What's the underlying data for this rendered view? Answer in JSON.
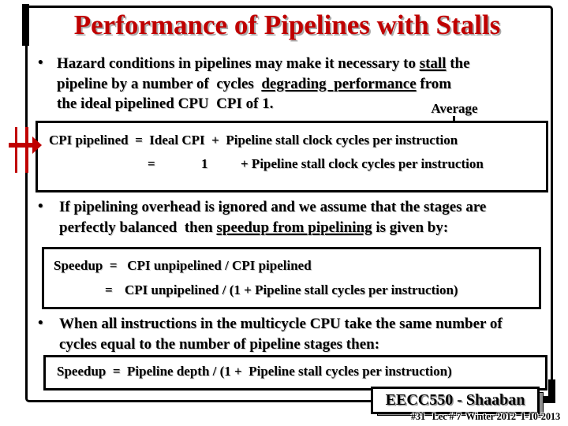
{
  "slide": {
    "title": "Performance of Pipelines with Stalls",
    "colors": {
      "accent_red": "#c00000",
      "text": "#000000",
      "shadow_gray": "#8f8f8f"
    },
    "bullets": [
      {
        "marker": "•",
        "segments": [
          {
            "t": "Hazard conditions in pipelines may make it necessary to "
          },
          {
            "t": "stall",
            "u": true
          },
          {
            "t": " the",
            "br": true
          },
          {
            "t": "pipeline by a number of  cycles  "
          },
          {
            "t": "degrading  performance",
            "u": true
          },
          {
            "t": " from",
            "br": true
          },
          {
            "t": "the ideal pipelined CPU  CPI of 1."
          }
        ]
      },
      {
        "marker": "•",
        "segments": [
          {
            "t": "If pipelining overhead is ignored and we assume that the stages are",
            "br": true
          },
          {
            "t": "perfectly balanced  then "
          },
          {
            "t": "speedup from pipelining",
            "u": true
          },
          {
            "t": " is given by:"
          }
        ]
      },
      {
        "marker": "•",
        "segments": [
          {
            "t": "When all instructions in the multicycle CPU take the same number of",
            "br": true
          },
          {
            "t": "cycles equal to the number of pipeline stages then:"
          }
        ]
      }
    ],
    "average_label": "Average",
    "box1": {
      "line1": "CPI pipelined  =  Ideal CPI  +  Pipeline stall clock cycles per instruction",
      "line2_eq": "=",
      "line2_one": "1",
      "line2_rest": "+ Pipeline stall clock cycles per instruction"
    },
    "box2": {
      "line1": "Speedup  =   CPI unpipelined / CPI pipelined",
      "line2_eq": "=",
      "line2_rest": "CPI unpipelined / (1 + Pipeline stall cycles per instruction)"
    },
    "box3": {
      "line1": "Speedup  =  Pipeline depth / (1 +  Pipeline stall cycles per instruction)"
    },
    "footer": {
      "course": "EECC550 - Shaaban",
      "meta": "#31   Lec # 7  Winter 2012  1-10-2013"
    }
  }
}
